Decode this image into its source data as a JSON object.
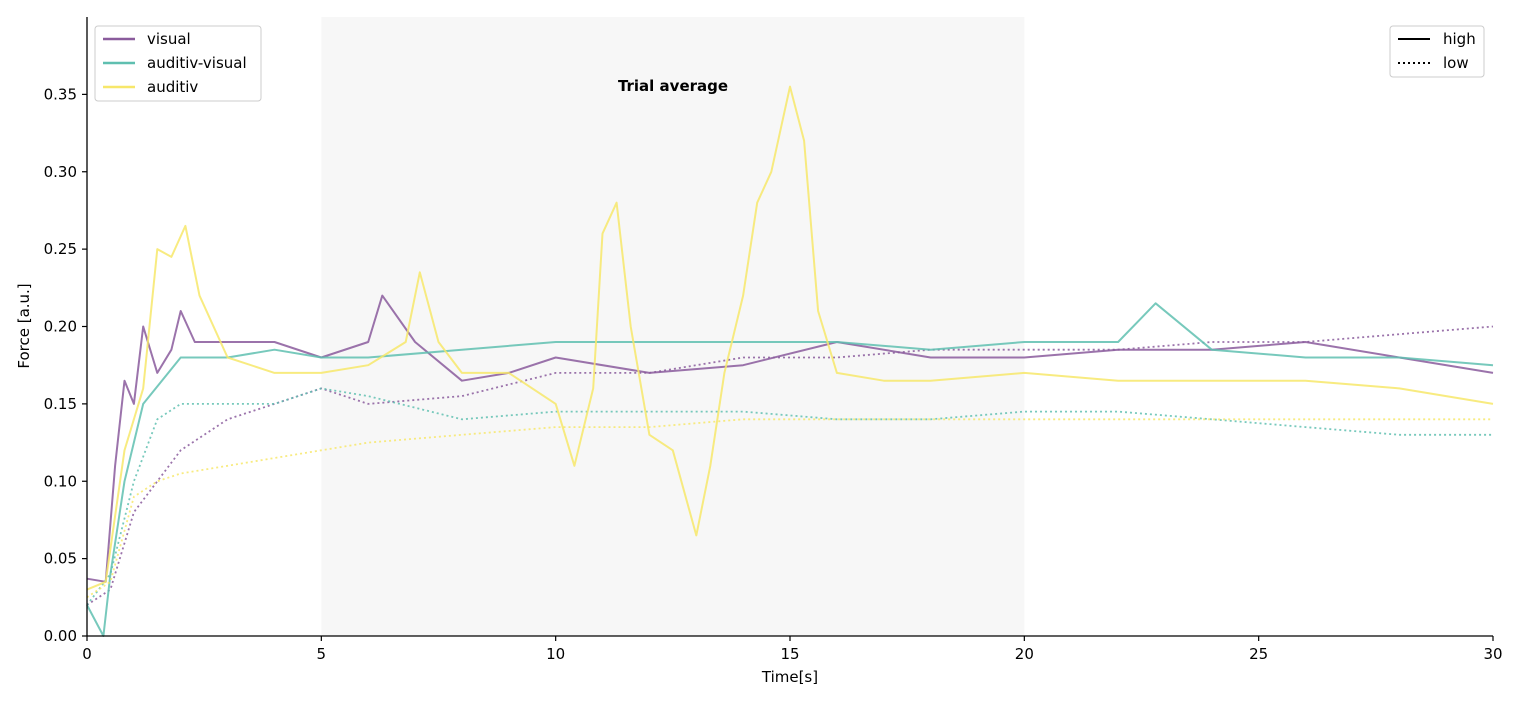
{
  "chart_data": {
    "type": "line",
    "title": "Trial average",
    "xlabel": "Time[s]",
    "ylabel": "Force [a.u.]",
    "xlim": [
      0,
      30
    ],
    "ylim": [
      0,
      0.4
    ],
    "xticks": [
      "0",
      "5",
      "10",
      "15",
      "20",
      "25",
      "30"
    ],
    "yticks": [
      "0.00",
      "0.05",
      "0.10",
      "0.15",
      "0.20",
      "0.25",
      "0.30",
      "0.35"
    ],
    "shaded_region": [
      5,
      20
    ],
    "grid": false,
    "legend_placement": "top-left",
    "line_style_legend_placement": "top-right",
    "condition_legend": [
      {
        "name": "visual",
        "color": "#8a5b9c"
      },
      {
        "name": "auditiv-visual",
        "color": "#5fbfb0"
      },
      {
        "name": "auditiv",
        "color": "#f7e76a"
      }
    ],
    "style_legend": [
      {
        "name": "high",
        "dash": "solid"
      },
      {
        "name": "low",
        "dash": "dotted"
      }
    ],
    "series": [
      {
        "group": "visual",
        "style": "high",
        "color": "#8a5b9c",
        "x": [
          0,
          0.4,
          0.6,
          0.8,
          1.0,
          1.2,
          1.5,
          1.8,
          2.0,
          2.3,
          3,
          4,
          5,
          6,
          6.3,
          7,
          8,
          9,
          10,
          12,
          14,
          16,
          18,
          20,
          22,
          24,
          26,
          28,
          30
        ],
        "y": [
          0.037,
          0.035,
          0.11,
          0.165,
          0.15,
          0.2,
          0.17,
          0.185,
          0.21,
          0.19,
          0.19,
          0.19,
          0.18,
          0.19,
          0.22,
          0.19,
          0.165,
          0.17,
          0.18,
          0.17,
          0.175,
          0.19,
          0.18,
          0.18,
          0.185,
          0.185,
          0.19,
          0.18,
          0.17
        ]
      },
      {
        "group": "visual",
        "style": "low",
        "color": "#8a5b9c",
        "x": [
          0,
          0.5,
          1.0,
          1.5,
          2.0,
          3,
          4,
          5,
          6,
          8,
          10,
          12,
          14,
          16,
          18,
          20,
          22,
          24,
          26,
          28,
          30
        ],
        "y": [
          0.02,
          0.03,
          0.08,
          0.1,
          0.12,
          0.14,
          0.15,
          0.16,
          0.15,
          0.155,
          0.17,
          0.17,
          0.18,
          0.18,
          0.185,
          0.185,
          0.185,
          0.19,
          0.19,
          0.195,
          0.2
        ]
      },
      {
        "group": "auditiv-visual",
        "style": "high",
        "color": "#5fbfb0",
        "x": [
          0,
          0.35,
          0.5,
          0.8,
          1.2,
          2,
          3,
          4,
          5,
          6,
          8,
          10,
          12,
          14,
          16,
          18,
          20,
          22,
          22.8,
          24,
          26,
          28,
          30
        ],
        "y": [
          0.02,
          0.0,
          0.04,
          0.1,
          0.15,
          0.18,
          0.18,
          0.185,
          0.18,
          0.18,
          0.185,
          0.19,
          0.19,
          0.19,
          0.19,
          0.185,
          0.19,
          0.19,
          0.215,
          0.185,
          0.18,
          0.18,
          0.175
        ]
      },
      {
        "group": "auditiv-visual",
        "style": "low",
        "color": "#5fbfb0",
        "x": [
          0,
          0.5,
          1.0,
          1.5,
          2,
          3,
          4,
          5,
          6,
          8,
          10,
          12,
          14,
          16,
          18,
          20,
          22,
          24,
          26,
          28,
          30
        ],
        "y": [
          0.02,
          0.04,
          0.1,
          0.14,
          0.15,
          0.15,
          0.15,
          0.16,
          0.155,
          0.14,
          0.145,
          0.145,
          0.145,
          0.14,
          0.14,
          0.145,
          0.145,
          0.14,
          0.135,
          0.13,
          0.13
        ]
      },
      {
        "group": "auditiv",
        "style": "high",
        "color": "#f7e76a",
        "x": [
          0,
          0.4,
          0.8,
          1.2,
          1.5,
          1.8,
          2.1,
          2.4,
          3,
          4,
          5,
          6,
          6.8,
          7.1,
          7.5,
          8,
          9,
          10,
          10.4,
          10.8,
          11,
          11.3,
          11.6,
          12,
          12.5,
          13.0,
          13.3,
          13.6,
          14,
          14.3,
          14.6,
          15.0,
          15.3,
          15.6,
          16,
          17,
          18,
          20,
          22,
          24,
          26,
          28,
          30
        ],
        "y": [
          0.03,
          0.035,
          0.12,
          0.16,
          0.25,
          0.245,
          0.265,
          0.22,
          0.18,
          0.17,
          0.17,
          0.175,
          0.19,
          0.235,
          0.19,
          0.17,
          0.17,
          0.15,
          0.11,
          0.16,
          0.26,
          0.28,
          0.2,
          0.13,
          0.12,
          0.065,
          0.11,
          0.17,
          0.22,
          0.28,
          0.3,
          0.355,
          0.32,
          0.21,
          0.17,
          0.165,
          0.165,
          0.17,
          0.165,
          0.165,
          0.165,
          0.16,
          0.15
        ]
      },
      {
        "group": "auditiv",
        "style": "low",
        "color": "#f7e76a",
        "x": [
          0,
          0.5,
          1.0,
          1.5,
          2,
          3,
          4,
          5,
          6,
          8,
          10,
          12,
          14,
          16,
          18,
          20,
          22,
          24,
          26,
          28,
          30
        ],
        "y": [
          0.025,
          0.035,
          0.09,
          0.1,
          0.105,
          0.11,
          0.115,
          0.12,
          0.125,
          0.13,
          0.135,
          0.135,
          0.14,
          0.14,
          0.14,
          0.14,
          0.14,
          0.14,
          0.14,
          0.14,
          0.14
        ]
      }
    ]
  }
}
